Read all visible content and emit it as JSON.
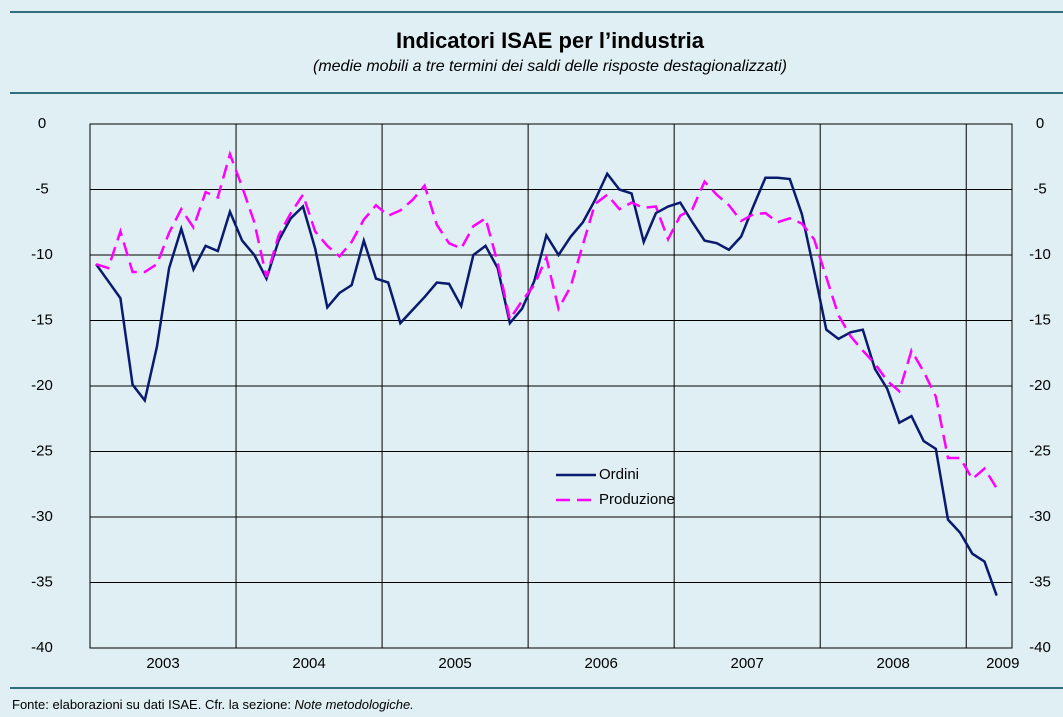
{
  "chart_data": {
    "type": "line",
    "title": "Indicatori ISAE per l’industria",
    "subtitle": "(medie mobili a tre termini dei saldi delle risposte destagionalizzati)",
    "categories": [
      null,
      null,
      null,
      null,
      null,
      "2003",
      null,
      null,
      null,
      null,
      null,
      null,
      null,
      null,
      null,
      null,
      null,
      "2004",
      null,
      null,
      null,
      null,
      null,
      null,
      null,
      null,
      null,
      null,
      null,
      "2005",
      null,
      null,
      null,
      null,
      null,
      null,
      null,
      null,
      null,
      null,
      null,
      "2006",
      null,
      null,
      null,
      null,
      null,
      null,
      null,
      null,
      null,
      null,
      null,
      "2007",
      null,
      null,
      null,
      null,
      null,
      null,
      null,
      null,
      null,
      null,
      null,
      "2008",
      null,
      null,
      null,
      null,
      null,
      null,
      null,
      null,
      "2009"
    ],
    "series": [
      {
        "name": "Ordini",
        "color": "#0a1a6e",
        "dash": false,
        "values": [
          -10.7,
          -12,
          -13.3,
          -19.9,
          -21.1,
          -17,
          -11,
          -8,
          -11.1,
          -9.3,
          -9.7,
          -6.7,
          -8.9,
          -10,
          -11.8,
          -8.9,
          -7.2,
          -6.3,
          -9.5,
          -14,
          -12.9,
          -12.3,
          -8.9,
          -11.8,
          -12.1,
          -15.2,
          -14.2,
          -13.2,
          -12.1,
          -12.2,
          -13.9,
          -10,
          -9.3,
          -11,
          -15.2,
          -14.1,
          -12,
          -8.5,
          -10,
          -8.6,
          -7.5,
          -5.8,
          -3.8,
          -5,
          -5.3,
          -9,
          -6.8,
          -6.3,
          -6,
          -7.5,
          -8.9,
          -9.1,
          -9.6,
          -8.6,
          -6.3,
          -4.1,
          -4.1,
          -4.2,
          -6.9,
          -11.2,
          -15.7,
          -16.4,
          -15.9,
          -15.7,
          -18.7,
          -20.2,
          -22.8,
          -22.3,
          -24.2,
          -24.8,
          -30.2,
          -31.2,
          -32.8,
          -33.4,
          -36
        ]
      },
      {
        "name": "Produzione",
        "color": "#ff00ff",
        "dash": true,
        "values": [
          -10.7,
          -11,
          -8.2,
          -11.3,
          -11.3,
          -10.7,
          -8.3,
          -6.5,
          -7.9,
          -5.2,
          -5.6,
          -2.3,
          -4.8,
          -7.5,
          -11.7,
          -8.5,
          -6.8,
          -5.4,
          -8.2,
          -9.3,
          -10.1,
          -9,
          -7.3,
          -6.2,
          -7,
          -6.6,
          -5.8,
          -4.7,
          -7.7,
          -9.1,
          -9.5,
          -7.8,
          -7.2,
          -10.6,
          -14.9,
          -13.5,
          -12.3,
          -10.2,
          -14.1,
          -12.4,
          -9.2,
          -6.1,
          -5.4,
          -6.5,
          -6,
          -6.4,
          -6.3,
          -8.8,
          -7,
          -6.5,
          -4.4,
          -5.4,
          -6.2,
          -7.4,
          -6.9,
          -6.8,
          -7.5,
          -7.2,
          -7.6,
          -8.8,
          -11.7,
          -14.6,
          -16.2,
          -17.3,
          -18.3,
          -19.6,
          -20.4,
          -17.3,
          -18.9,
          -20.8,
          -25.5,
          -25.5,
          -27.1,
          -26.3,
          -27.8
        ]
      }
    ],
    "ylim": [
      -40,
      0
    ],
    "yticks": [
      0,
      -5,
      -10,
      -15,
      -20,
      -25,
      -30,
      -35,
      -40
    ],
    "grid": true
  },
  "footer": {
    "source": "Fonte: elaborazioni su dati ISAE. Cfr. la sezione: ",
    "note": "Note metodologiche."
  }
}
